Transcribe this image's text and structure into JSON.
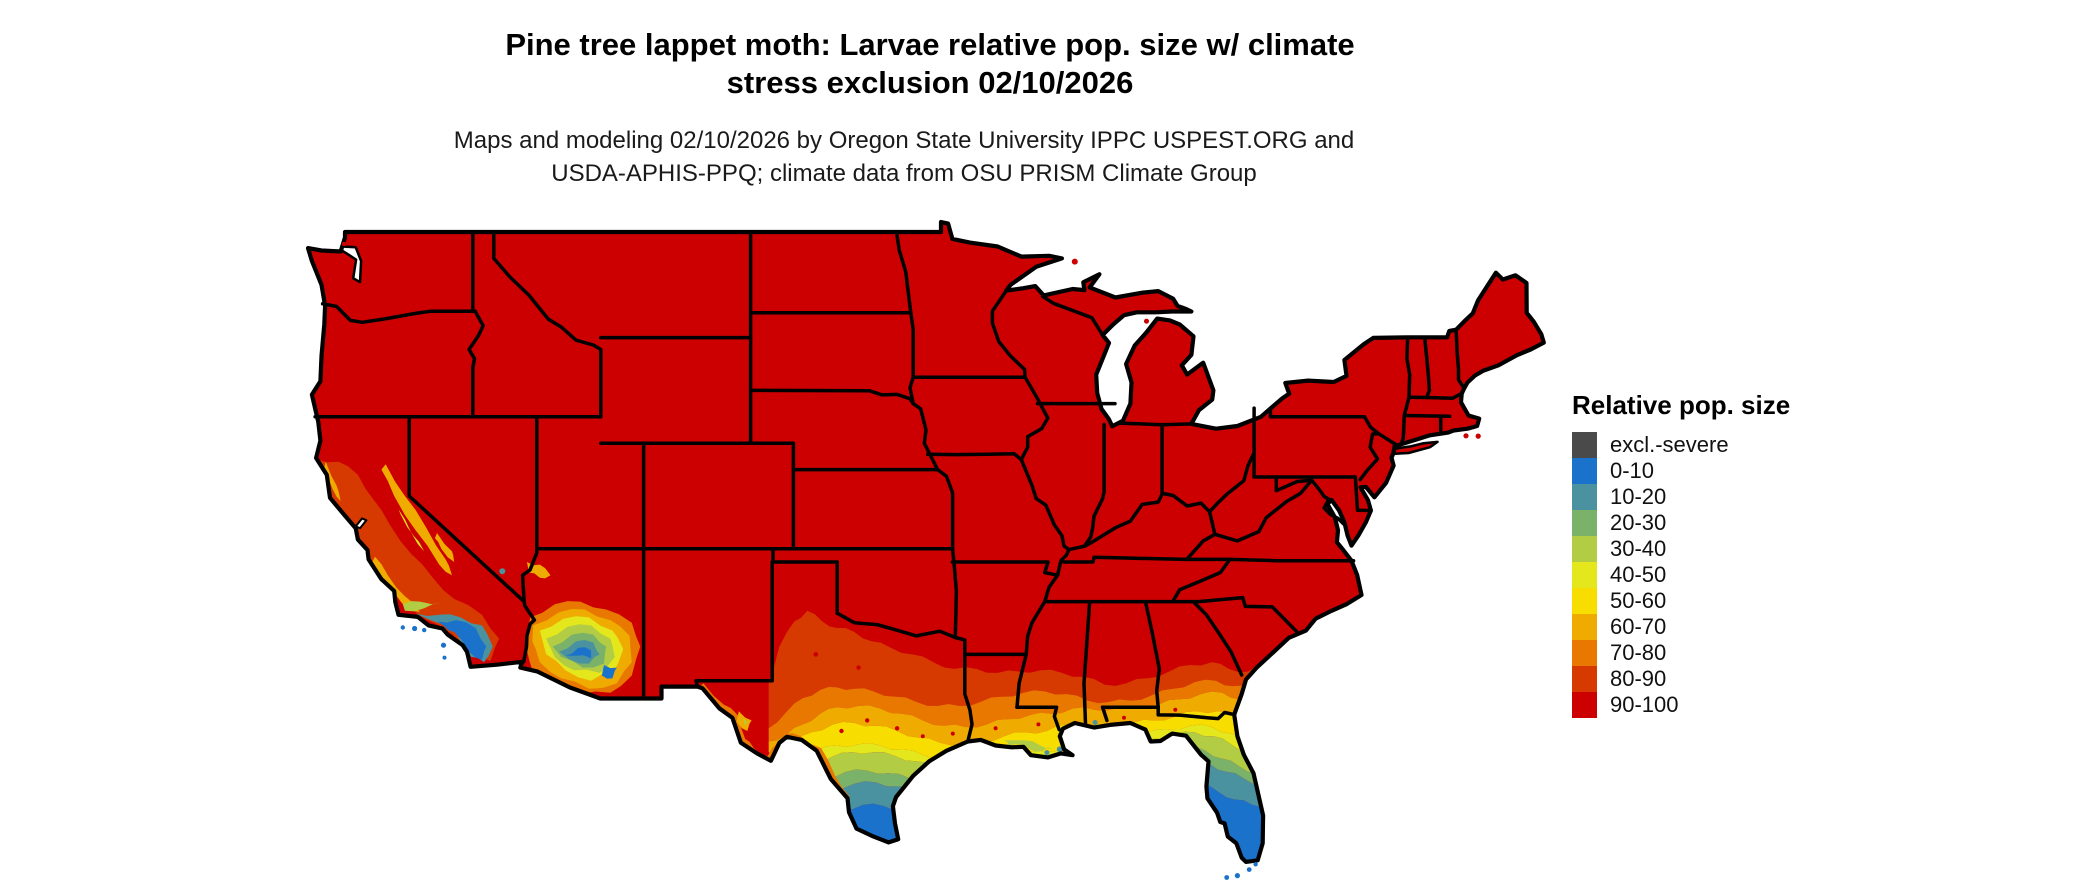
{
  "title": {
    "line1": "Pine tree lappet moth: Larvae relative pop. size w/ climate",
    "line2": "stress exclusion 02/10/2026"
  },
  "subtitle": {
    "line1": "Maps and modeling 02/10/2026 by Oregon State University IPPC USPEST.ORG and",
    "line2": "USDA-APHIS-PPQ; climate data from OSU PRISM Climate Group"
  },
  "legend": {
    "title": "Relative pop. size",
    "items": [
      {
        "label": "excl.-severe",
        "color": "#4a4a4a"
      },
      {
        "label": "0-10",
        "color": "#1b72cb"
      },
      {
        "label": "10-20",
        "color": "#4a92a0"
      },
      {
        "label": "20-30",
        "color": "#7bb269"
      },
      {
        "label": "30-40",
        "color": "#b2cc44"
      },
      {
        "label": "40-50",
        "color": "#e3e71c"
      },
      {
        "label": "50-60",
        "color": "#f8de00"
      },
      {
        "label": "60-70",
        "color": "#f0ab00"
      },
      {
        "label": "70-80",
        "color": "#e87800"
      },
      {
        "label": "80-90",
        "color": "#d63a00"
      },
      {
        "label": "90-100",
        "color": "#cc0000"
      }
    ]
  },
  "map": {
    "region": "Contiguous United States",
    "base_fill_label": "90-100",
    "border_color": "#000000",
    "water_color": "#ffffff"
  }
}
